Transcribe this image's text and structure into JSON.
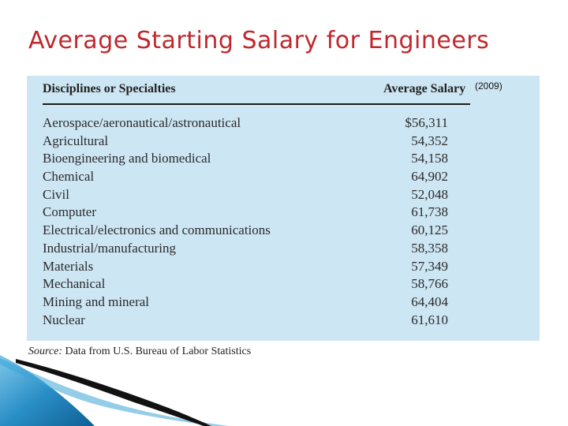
{
  "slide": {
    "title": "Average Starting Salary for Engineers"
  },
  "table": {
    "header": {
      "discipline": "Disciplines or Specialties",
      "salary": "Average Salary",
      "year_note": "(2009)"
    },
    "rows": [
      {
        "discipline": "Aerospace/aeronautical/astronautical",
        "salary": "$56,311"
      },
      {
        "discipline": "Agricultural",
        "salary": "54,352"
      },
      {
        "discipline": "Bioengineering and biomedical",
        "salary": "54,158"
      },
      {
        "discipline": "Chemical",
        "salary": "64,902"
      },
      {
        "discipline": "Civil",
        "salary": "52,048"
      },
      {
        "discipline": "Computer",
        "salary": "61,738"
      },
      {
        "discipline": "Electrical/electronics and communications",
        "salary": "60,125"
      },
      {
        "discipline": "Industrial/manufacturing",
        "salary": "58,358"
      },
      {
        "discipline": "Materials",
        "salary": "57,349"
      },
      {
        "discipline": "Mechanical",
        "salary": "58,766"
      },
      {
        "discipline": "Mining and mineral",
        "salary": "64,404"
      },
      {
        "discipline": "Nuclear",
        "salary": "61,610"
      }
    ],
    "background_color": "#cde6f4"
  },
  "source": {
    "label": "Source:",
    "text": "Data from U.S. Bureau of Labor Statistics"
  },
  "colors": {
    "title": "#c0282d",
    "accent_blue": "#2a8fc7"
  }
}
